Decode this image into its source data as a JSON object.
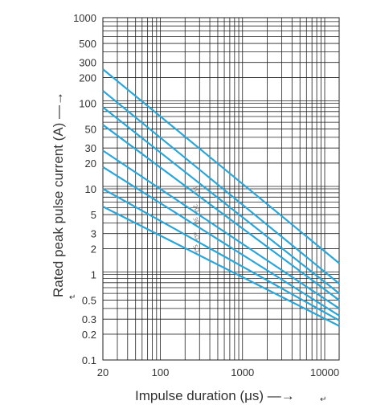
{
  "chart_data": {
    "type": "line",
    "title": "",
    "xlabel": "Impulse duration (μs) —→",
    "ylabel": "Rated peak pulse current (A) —→",
    "x_scale": "log",
    "y_scale": "log",
    "xlim": [
      20,
      15000
    ],
    "ylim": [
      0.1,
      1000
    ],
    "x_ticks": [
      "20",
      "100",
      "1000",
      "10000"
    ],
    "y_ticks": [
      "1000",
      "500",
      "300",
      "200",
      "100",
      "50",
      "30",
      "20",
      "10",
      "5",
      "3",
      "2",
      "1",
      "0.5",
      "0.3",
      "0.2",
      "0.1"
    ],
    "grid": true,
    "legend": "none",
    "line_color": "#2aa6d8",
    "series": [
      {
        "x": [
          20,
          15000
        ],
        "y": [
          250,
          1.35
        ]
      },
      {
        "x": [
          20,
          15000
        ],
        "y": [
          140,
          0.78
        ]
      },
      {
        "x": [
          20,
          15000
        ],
        "y": [
          90,
          0.6
        ]
      },
      {
        "x": [
          20,
          15000
        ],
        "y": [
          56,
          0.5
        ]
      },
      {
        "x": [
          20,
          15000
        ],
        "y": [
          28,
          0.4
        ]
      },
      {
        "x": [
          20,
          15000
        ],
        "y": [
          18,
          0.33
        ]
      },
      {
        "x": [
          20,
          15000
        ],
        "y": [
          10,
          0.29
        ]
      },
      {
        "x": [
          20,
          15000
        ],
        "y": [
          6.2,
          0.25
        ]
      }
    ],
    "curve_labels": [
      "1Ω",
      "2Ω",
      "3Ω",
      "4Ω",
      "5Ω"
    ],
    "curve_label_x": [
      300,
      300,
      300,
      300,
      300
    ]
  },
  "extra_marks": [
    "↵",
    "↵"
  ]
}
